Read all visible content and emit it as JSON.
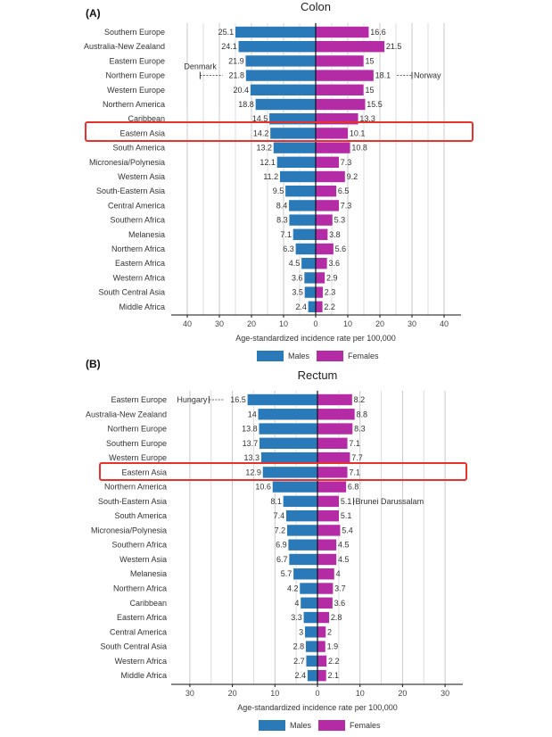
{
  "chart_data": [
    {
      "type": "bar",
      "panel_label": "(A)",
      "title": "Colon",
      "orientation": "horizontal-butterfly",
      "xlabel": "Age-standardized incidence rate per 100,000",
      "xlim": [
        -40,
        40
      ],
      "xticks": [
        40,
        30,
        20,
        10,
        0,
        10,
        20,
        30,
        40
      ],
      "grid": true,
      "categories": [
        "Southern Europe",
        "Australia-New Zealand",
        "Eastern Europe",
        "Northern Europe",
        "Western Europe",
        "Northern America",
        "Caribbean",
        "Eastern Asia",
        "South America",
        "Micronesia/Polynesia",
        "Western Asia",
        "South-Eastern Asia",
        "Central America",
        "Southern Africa",
        "Melanesia",
        "Northern Africa",
        "Eastern Africa",
        "Western Africa",
        "South Central Asia",
        "Middle Africa"
      ],
      "series": [
        {
          "name": "Males",
          "color": "#2a7ab9",
          "values": [
            25.1,
            24.1,
            21.9,
            21.8,
            20.4,
            18.8,
            14.5,
            14.2,
            13.2,
            12.1,
            11.2,
            9.5,
            8.4,
            8.3,
            7.1,
            6.3,
            4.5,
            3.6,
            3.5,
            2.4
          ]
        },
        {
          "name": "Females",
          "color": "#b52ba6",
          "values": [
            16.6,
            21.5,
            15.0,
            18.1,
            15.0,
            15.5,
            13.3,
            10.1,
            10.8,
            7.3,
            9.2,
            6.5,
            7.3,
            5.3,
            3.8,
            5.6,
            3.6,
            2.9,
            2.3,
            2.2
          ]
        }
      ],
      "highlight": "Eastern Asia",
      "annotations": [
        {
          "text": "Denmark",
          "row": "Northern Europe",
          "side": "Males",
          "value": 36
        },
        {
          "text": "Norway",
          "row": "Northern Europe",
          "side": "Females",
          "value": 30
        }
      ],
      "legend": {
        "placement": "bottom",
        "entries": [
          "Males",
          "Females"
        ]
      }
    },
    {
      "type": "bar",
      "panel_label": "(B)",
      "title": "Rectum",
      "orientation": "horizontal-butterfly",
      "xlabel": "Age-standardized incidence rate per 100,000",
      "xlim": [
        -30,
        30
      ],
      "xticks": [
        30,
        20,
        10,
        0,
        10,
        20,
        30
      ],
      "grid": true,
      "categories": [
        "Eastern Europe",
        "Australia-New Zealand",
        "Northern Europe",
        "Southern Europe",
        "Western Europe",
        "Eastern Asia",
        "Northern America",
        "South-Eastern Asia",
        "South America",
        "Micronesia/Polynesia",
        "Southern Africa",
        "Western Asia",
        "Melanesia",
        "Northern Africa",
        "Caribbean",
        "Eastern Africa",
        "Central America",
        "South Central Asia",
        "Western Africa",
        "Middle Africa"
      ],
      "series": [
        {
          "name": "Males",
          "color": "#2a7ab9",
          "values": [
            16.5,
            14.0,
            13.8,
            13.7,
            13.3,
            12.9,
            10.6,
            8.1,
            7.4,
            7.2,
            6.9,
            6.7,
            5.7,
            4.2,
            4.0,
            3.3,
            3.0,
            2.8,
            2.7,
            2.4
          ]
        },
        {
          "name": "Females",
          "color": "#b52ba6",
          "values": [
            8.2,
            8.8,
            8.3,
            7.1,
            7.7,
            7.1,
            6.8,
            5.1,
            5.1,
            5.4,
            4.5,
            4.5,
            4.0,
            3.7,
            3.6,
            2.8,
            2.0,
            1.9,
            2.2,
            2.1
          ]
        }
      ],
      "highlight": "Eastern Asia",
      "annotations": [
        {
          "text": "Hungary",
          "row": "Eastern Europe",
          "side": "Males",
          "value": 25.5
        },
        {
          "text": "Brunei Darussalam",
          "row": "South-Eastern Asia",
          "side": "Females",
          "value": 8.5
        }
      ],
      "legend": {
        "placement": "bottom",
        "entries": [
          "Males",
          "Females"
        ]
      }
    }
  ]
}
